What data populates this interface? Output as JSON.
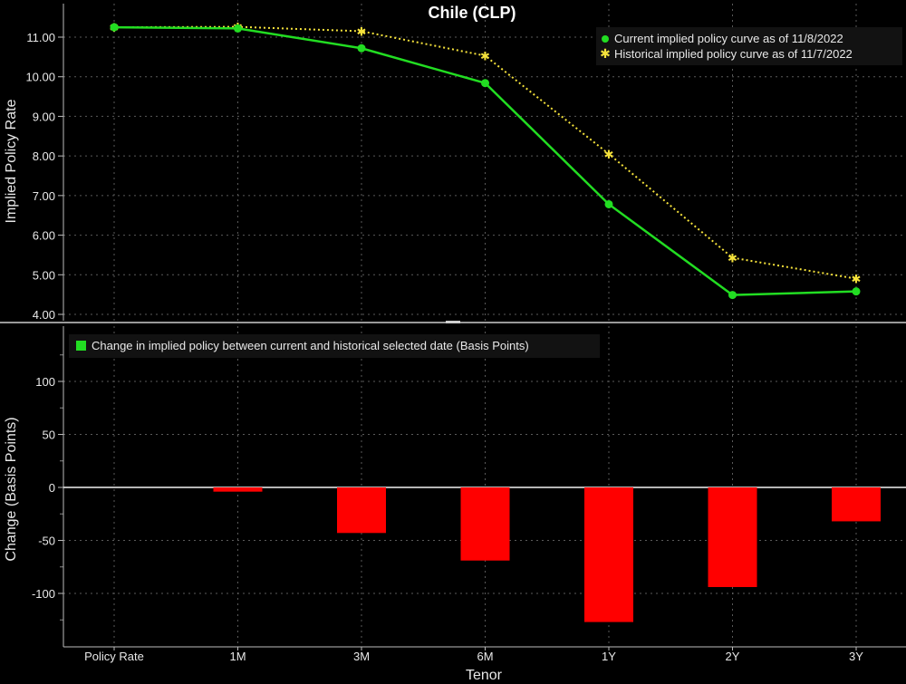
{
  "chart_data": [
    {
      "type": "line",
      "title": "Chile (CLP)",
      "ylabel": "Implied Policy Rate",
      "categories": [
        "Policy Rate",
        "1M",
        "3M",
        "6M",
        "1Y",
        "2Y",
        "3Y"
      ],
      "ylim": [
        3.8,
        11.6
      ],
      "yticks": [
        "11.00",
        "10.00",
        "9.00",
        "8.00",
        "7.00",
        "6.00",
        "5.00",
        "4.00"
      ],
      "grid": true,
      "legend_position": "top-right",
      "series": [
        {
          "name": "Current implied policy curve as of 11/8/2022",
          "values": [
            11.25,
            11.22,
            10.72,
            9.84,
            6.78,
            4.49,
            4.58
          ],
          "color": "#22dd22"
        },
        {
          "name": "Historical implied policy curve as of 11/7/2022",
          "values": [
            11.25,
            11.26,
            11.15,
            10.53,
            8.05,
            5.43,
            4.9
          ],
          "color": "#f5e23b"
        }
      ]
    },
    {
      "type": "bar",
      "xlabel": "Tenor",
      "ylabel": "Change (Basis Points)",
      "categories": [
        "Policy Rate",
        "1M",
        "3M",
        "6M",
        "1Y",
        "2Y",
        "3Y"
      ],
      "ylim": [
        -150,
        150
      ],
      "yticks": [
        "100",
        "50",
        "0",
        "-50",
        "-100"
      ],
      "grid": true,
      "legend_position": "top-left",
      "series": [
        {
          "name": "Change in implied policy between current and historical selected date (Basis Points)",
          "values": [
            0,
            -4,
            -43,
            -69,
            -127,
            -94,
            -32
          ],
          "color": "#ff0000"
        }
      ]
    }
  ]
}
